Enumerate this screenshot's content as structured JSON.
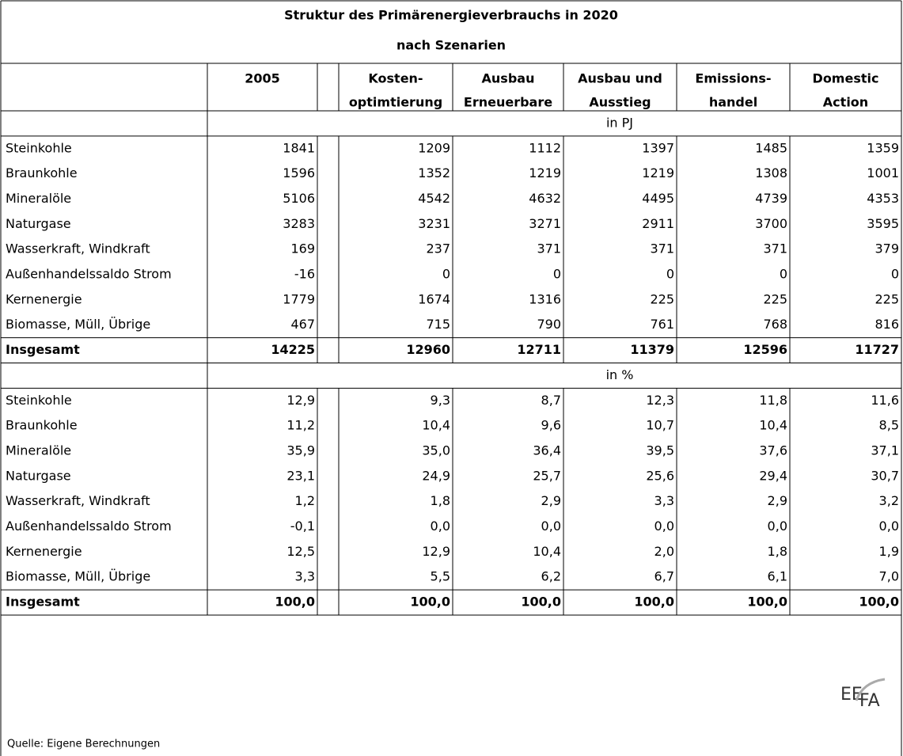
{
  "title": [
    "Struktur des Primärenergieverbrauchs in 2020",
    "nach Szenarien"
  ],
  "columns": [
    [
      "2005"
    ],
    [
      "Kosten-",
      "optimtierung"
    ],
    [
      "Ausbau",
      "Erneuerbare"
    ],
    [
      "Ausbau und",
      "Ausstieg"
    ],
    [
      "Emissions-",
      "handel"
    ],
    [
      "Domestic",
      "Action"
    ]
  ],
  "sections": [
    {
      "unit": "in PJ",
      "rows": [
        {
          "label": "Steinkohle",
          "values": [
            1841,
            1209,
            1112,
            1397,
            1485,
            1359
          ]
        },
        {
          "label": "Braunkohle",
          "values": [
            1596,
            1352,
            1219,
            1219,
            1308,
            1001
          ]
        },
        {
          "label": "Mineralöle",
          "values": [
            5106,
            4542,
            4632,
            4495,
            4739,
            4353
          ]
        },
        {
          "label": "Naturgase",
          "values": [
            3283,
            3231,
            3271,
            2911,
            3700,
            3595
          ]
        },
        {
          "label": "Wasserkraft, Windkraft",
          "values": [
            169,
            237,
            371,
            371,
            371,
            379
          ]
        },
        {
          "label": "Außenhandelssaldo Strom",
          "values": [
            -16,
            0,
            0,
            0,
            0,
            0
          ]
        },
        {
          "label": "Kernenergie",
          "values": [
            1779,
            1674,
            1316,
            225,
            225,
            225
          ]
        },
        {
          "label": "Biomasse, Müll, Übrige",
          "values": [
            467,
            715,
            790,
            761,
            768,
            816
          ]
        },
        {
          "label": "Insgesamt",
          "values": [
            14225,
            12960,
            12711,
            11379,
            12596,
            11727
          ]
        }
      ]
    },
    {
      "unit": "in %",
      "rows": [
        {
          "label": "Steinkohle",
          "values": [
            "12,9",
            "9,3",
            "8,7",
            "12,3",
            "11,8",
            "11,6"
          ]
        },
        {
          "label": "Braunkohle",
          "values": [
            "11,2",
            "10,4",
            "9,6",
            "10,7",
            "10,4",
            "8,5"
          ]
        },
        {
          "label": "Mineralöle",
          "values": [
            "35,9",
            "35,0",
            "36,4",
            "39,5",
            "37,6",
            "37,1"
          ]
        },
        {
          "label": "Naturgase",
          "values": [
            "23,1",
            "24,9",
            "25,7",
            "25,6",
            "29,4",
            "30,7"
          ]
        },
        {
          "label": "Wasserkraft, Windkraft",
          "values": [
            "1,2",
            "1,8",
            "2,9",
            "3,3",
            "2,9",
            "3,2"
          ]
        },
        {
          "label": "Außenhandelssaldo Strom",
          "values": [
            "-0,1",
            "0,0",
            "0,0",
            "0,0",
            "0,0",
            "0,0"
          ]
        },
        {
          "label": "Kernenergie",
          "values": [
            "12,5",
            "12,9",
            "10,4",
            "2,0",
            "1,8",
            "1,9"
          ]
        },
        {
          "label": "Biomasse, Müll, Übrige",
          "values": [
            "3,3",
            "5,5",
            "6,2",
            "6,7",
            "6,1",
            "7,0"
          ]
        },
        {
          "label": "Insgesamt",
          "values": [
            "100,0",
            "100,0",
            "100,0",
            "100,0",
            "100,0",
            "100,0"
          ]
        }
      ]
    }
  ],
  "source": "Quelle: Eigene Berechnungen",
  "logo": [
    "EE",
    "FA"
  ]
}
